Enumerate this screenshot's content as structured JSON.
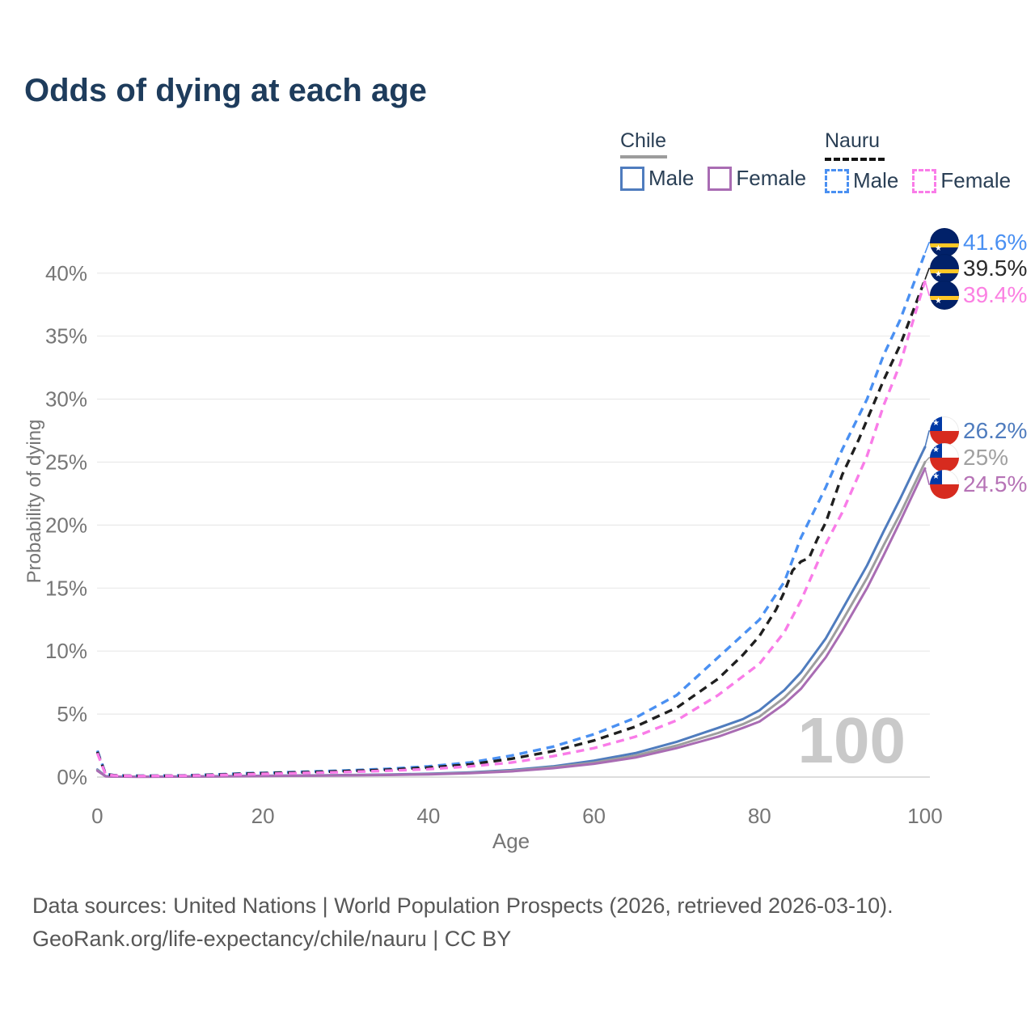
{
  "title": "Odds of dying at each age",
  "legend": {
    "groups": [
      {
        "label": "Chile",
        "entries": [
          {
            "label": "Male"
          },
          {
            "label": "Female"
          }
        ]
      },
      {
        "label": "Nauru",
        "entries": [
          {
            "label": "Male"
          },
          {
            "label": "Female"
          }
        ]
      }
    ]
  },
  "chart_data": {
    "type": "line",
    "title": "Odds of dying at each age",
    "xlabel": "Age",
    "ylabel": "Probability of dying",
    "xlim": [
      0,
      100
    ],
    "ylim": [
      0,
      43
    ],
    "grid": true,
    "watermark": "100",
    "x_ticks": [
      0,
      20,
      40,
      60,
      80,
      100
    ],
    "y_ticks": [
      [
        0,
        "0%"
      ],
      [
        5,
        "5%"
      ],
      [
        10,
        "10%"
      ],
      [
        15,
        "15%"
      ],
      [
        20,
        "20%"
      ],
      [
        25,
        "25%"
      ],
      [
        30,
        "30%"
      ],
      [
        35,
        "35%"
      ],
      [
        40,
        "40%"
      ]
    ],
    "series": [
      {
        "name": "Nauru Male",
        "country": "Nauru",
        "style": "dashed",
        "color": "#4a90f2",
        "label_color": "#4a90f2",
        "end_label": "41.6%",
        "points": [
          [
            0,
            2.1
          ],
          [
            1,
            0.25
          ],
          [
            2,
            0.15
          ],
          [
            3,
            0.12
          ],
          [
            5,
            0.1
          ],
          [
            10,
            0.12
          ],
          [
            15,
            0.22
          ],
          [
            18,
            0.3
          ],
          [
            20,
            0.33
          ],
          [
            25,
            0.42
          ],
          [
            30,
            0.52
          ],
          [
            35,
            0.65
          ],
          [
            40,
            0.85
          ],
          [
            45,
            1.15
          ],
          [
            50,
            1.7
          ],
          [
            55,
            2.4
          ],
          [
            60,
            3.4
          ],
          [
            65,
            4.7
          ],
          [
            70,
            6.5
          ],
          [
            75,
            9.5
          ],
          [
            80,
            12.5
          ],
          [
            83,
            15.5
          ],
          [
            85,
            19.0
          ],
          [
            88,
            23.0
          ],
          [
            90,
            26.0
          ],
          [
            93,
            30.0
          ],
          [
            95,
            33.5
          ],
          [
            97,
            36.3
          ],
          [
            100,
            41.6
          ]
        ]
      },
      {
        "name": "Nauru Both sexes",
        "country": "Nauru",
        "style": "dashed",
        "color": "#1f1f1f",
        "label_color": "#2b2b2b",
        "end_label": "39.5%",
        "points": [
          [
            0,
            2.0
          ],
          [
            1,
            0.22
          ],
          [
            2,
            0.14
          ],
          [
            3,
            0.11
          ],
          [
            5,
            0.09
          ],
          [
            10,
            0.11
          ],
          [
            15,
            0.19
          ],
          [
            18,
            0.27
          ],
          [
            20,
            0.3
          ],
          [
            25,
            0.38
          ],
          [
            30,
            0.47
          ],
          [
            35,
            0.58
          ],
          [
            40,
            0.75
          ],
          [
            45,
            1.0
          ],
          [
            50,
            1.45
          ],
          [
            55,
            2.05
          ],
          [
            60,
            2.9
          ],
          [
            65,
            4.0
          ],
          [
            70,
            5.5
          ],
          [
            75,
            7.8
          ],
          [
            78,
            9.7
          ],
          [
            80,
            11.2
          ],
          [
            82,
            13.3
          ],
          [
            83,
            14.7
          ],
          [
            84,
            16.4
          ],
          [
            85,
            17.1
          ],
          [
            86,
            17.4
          ],
          [
            87,
            18.9
          ],
          [
            88,
            20.2
          ],
          [
            90,
            24.0
          ],
          [
            92,
            26.8
          ],
          [
            95,
            31.5
          ],
          [
            97,
            34.3
          ],
          [
            100,
            39.5
          ]
        ]
      },
      {
        "name": "Nauru Female",
        "country": "Nauru",
        "style": "dashed",
        "color": "#f97ce8",
        "label_color": "#fb80e2",
        "end_label": "39.4%",
        "points": [
          [
            0,
            1.9
          ],
          [
            1,
            0.2
          ],
          [
            2,
            0.12
          ],
          [
            3,
            0.1
          ],
          [
            5,
            0.08
          ],
          [
            10,
            0.1
          ],
          [
            15,
            0.16
          ],
          [
            18,
            0.22
          ],
          [
            20,
            0.25
          ],
          [
            25,
            0.32
          ],
          [
            30,
            0.4
          ],
          [
            35,
            0.5
          ],
          [
            40,
            0.63
          ],
          [
            45,
            0.85
          ],
          [
            50,
            1.15
          ],
          [
            55,
            1.65
          ],
          [
            60,
            2.3
          ],
          [
            65,
            3.2
          ],
          [
            70,
            4.5
          ],
          [
            75,
            6.5
          ],
          [
            80,
            9.0
          ],
          [
            83,
            11.5
          ],
          [
            85,
            14.0
          ],
          [
            88,
            18.5
          ],
          [
            90,
            21.0
          ],
          [
            93,
            25.5
          ],
          [
            95,
            29.5
          ],
          [
            97,
            32.8
          ],
          [
            100,
            39.4
          ]
        ]
      },
      {
        "name": "Chile Male",
        "country": "Chile",
        "style": "solid",
        "color": "#4f7cbe",
        "label_color": "#4f7cbe",
        "end_label": "26.2%",
        "points": [
          [
            0,
            0.6
          ],
          [
            1,
            0.07
          ],
          [
            2,
            0.04
          ],
          [
            3,
            0.03
          ],
          [
            5,
            0.03
          ],
          [
            10,
            0.04
          ],
          [
            15,
            0.07
          ],
          [
            20,
            0.1
          ],
          [
            25,
            0.13
          ],
          [
            30,
            0.16
          ],
          [
            35,
            0.2
          ],
          [
            40,
            0.26
          ],
          [
            45,
            0.37
          ],
          [
            50,
            0.55
          ],
          [
            55,
            0.85
          ],
          [
            60,
            1.3
          ],
          [
            65,
            1.9
          ],
          [
            70,
            2.8
          ],
          [
            75,
            3.9
          ],
          [
            78,
            4.6
          ],
          [
            80,
            5.3
          ],
          [
            83,
            6.9
          ],
          [
            85,
            8.3
          ],
          [
            88,
            11.0
          ],
          [
            90,
            13.3
          ],
          [
            93,
            16.8
          ],
          [
            95,
            19.5
          ],
          [
            97,
            22.1
          ],
          [
            100,
            26.2
          ]
        ]
      },
      {
        "name": "Chile Both sexes",
        "country": "Chile",
        "style": "solid",
        "color": "#9e9e9e",
        "label_color": "#a0a0a0",
        "end_label": "25%",
        "points": [
          [
            0,
            0.55
          ],
          [
            1,
            0.06
          ],
          [
            2,
            0.04
          ],
          [
            3,
            0.03
          ],
          [
            5,
            0.03
          ],
          [
            10,
            0.04
          ],
          [
            15,
            0.06
          ],
          [
            20,
            0.09
          ],
          [
            25,
            0.11
          ],
          [
            30,
            0.14
          ],
          [
            35,
            0.18
          ],
          [
            40,
            0.23
          ],
          [
            45,
            0.33
          ],
          [
            50,
            0.5
          ],
          [
            55,
            0.77
          ],
          [
            60,
            1.15
          ],
          [
            65,
            1.7
          ],
          [
            70,
            2.5
          ],
          [
            75,
            3.5
          ],
          [
            78,
            4.2
          ],
          [
            80,
            4.8
          ],
          [
            83,
            6.3
          ],
          [
            85,
            7.6
          ],
          [
            88,
            10.2
          ],
          [
            90,
            12.4
          ],
          [
            93,
            15.8
          ],
          [
            95,
            18.4
          ],
          [
            97,
            20.9
          ],
          [
            100,
            25.0
          ]
        ]
      },
      {
        "name": "Chile Female",
        "country": "Chile",
        "style": "solid",
        "color": "#a96cb3",
        "label_color": "#b673b6",
        "end_label": "24.5%",
        "points": [
          [
            0,
            0.5
          ],
          [
            1,
            0.06
          ],
          [
            2,
            0.03
          ],
          [
            3,
            0.03
          ],
          [
            5,
            0.02
          ],
          [
            10,
            0.03
          ],
          [
            15,
            0.05
          ],
          [
            20,
            0.08
          ],
          [
            25,
            0.1
          ],
          [
            30,
            0.13
          ],
          [
            35,
            0.16
          ],
          [
            40,
            0.21
          ],
          [
            45,
            0.3
          ],
          [
            50,
            0.45
          ],
          [
            55,
            0.7
          ],
          [
            60,
            1.05
          ],
          [
            65,
            1.55
          ],
          [
            70,
            2.3
          ],
          [
            75,
            3.2
          ],
          [
            78,
            3.9
          ],
          [
            80,
            4.4
          ],
          [
            83,
            5.8
          ],
          [
            85,
            7.0
          ],
          [
            88,
            9.5
          ],
          [
            90,
            11.6
          ],
          [
            93,
            15.0
          ],
          [
            95,
            17.6
          ],
          [
            97,
            20.3
          ],
          [
            100,
            24.5
          ]
        ]
      }
    ]
  },
  "footer": {
    "line1": "Data sources: United Nations | World Population Prospects (2026, retrieved 2026-03-10).",
    "line2": "GeoRank.org/life-expectancy/chile/nauru | CC BY"
  }
}
